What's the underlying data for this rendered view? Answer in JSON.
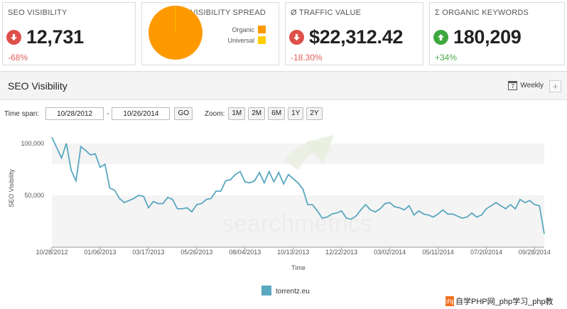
{
  "cards": {
    "seo_visibility": {
      "title": "SEO VISIBILITY",
      "value": "12,731",
      "change": "-68%",
      "direction": "down"
    },
    "visibility_spread": {
      "title": "VISIBILITY SPREAD",
      "legend": [
        {
          "label": "Organic",
          "color": "#ff9900"
        },
        {
          "label": "Universal",
          "color": "#ffcc00"
        }
      ]
    },
    "traffic_value": {
      "title": "Ø TRAFFIC VALUE",
      "value": "$22,312.42",
      "change": "-18.30%",
      "direction": "down"
    },
    "organic_keywords": {
      "title": "Σ ORGANIC KEYWORDS",
      "value": "180,209",
      "change": "+34%",
      "direction": "up"
    }
  },
  "panel": {
    "title": "SEO Visibility",
    "interval": "Weekly",
    "calendar_digit": "7",
    "add_label": "+"
  },
  "controls": {
    "time_span_label": "Time span:",
    "from_date": "10/28/2012",
    "separator": "-",
    "to_date": "10/26/2014",
    "go_label": "GO",
    "zoom_label": "Zoom:",
    "zoom_options": [
      "1M",
      "2M",
      "6M",
      "1Y",
      "2Y"
    ]
  },
  "chart_data": {
    "type": "line",
    "ylabel": "SEO Visibility",
    "xlabel": "Time",
    "y_ticks": [
      "100,000",
      "50,000"
    ],
    "y_tick_values": [
      100000,
      50000
    ],
    "ylim": [
      0,
      115000
    ],
    "x_ticks": [
      "10/28/2012",
      "01/06/2013",
      "03/17/2013",
      "05/26/2013",
      "08/04/2013",
      "10/13/2013",
      "12/22/2013",
      "03/02/2014",
      "05/11/2014",
      "07/20/2014",
      "09/28/2014"
    ],
    "x_ticks_week_index": [
      0,
      10,
      20,
      30,
      40,
      50,
      60,
      70,
      80,
      90,
      100
    ],
    "legend": "torrentz.eu",
    "color": "#5aa7c0",
    "series": [
      {
        "name": "torrentz.eu",
        "values": [
          106000,
          96000,
          86000,
          100000,
          74000,
          64000,
          97000,
          93000,
          89000,
          90000,
          77000,
          80000,
          57000,
          55000,
          47000,
          43000,
          45000,
          47000,
          50000,
          49000,
          38000,
          44000,
          42000,
          42000,
          48000,
          46000,
          37000,
          37000,
          38000,
          34000,
          41000,
          42000,
          46000,
          47000,
          54000,
          54000,
          64000,
          65000,
          70000,
          73000,
          63000,
          62000,
          64000,
          72000,
          62000,
          73000,
          63000,
          72000,
          61000,
          70000,
          66000,
          62000,
          56000,
          41000,
          41000,
          35000,
          28000,
          29000,
          32000,
          33000,
          35000,
          28000,
          27000,
          30000,
          36000,
          41000,
          36000,
          34000,
          37000,
          42000,
          43000,
          39000,
          38000,
          36000,
          40000,
          31000,
          35000,
          32000,
          31000,
          29000,
          32000,
          36000,
          32000,
          32000,
          30000,
          28000,
          29000,
          33000,
          29000,
          31000,
          37000,
          40000,
          43000,
          40000,
          37000,
          41000,
          37000,
          46000,
          43000,
          45000,
          41000,
          40000,
          12731
        ]
      }
    ],
    "grid": false,
    "band_ranges": [
      [
        100000,
        80000
      ],
      [
        50000,
        0
      ]
    ]
  },
  "watermark": {
    "brand": "searchmetrics",
    "badge_logo": "php",
    "badge_text": "自学PHP网_php学习_php教"
  }
}
